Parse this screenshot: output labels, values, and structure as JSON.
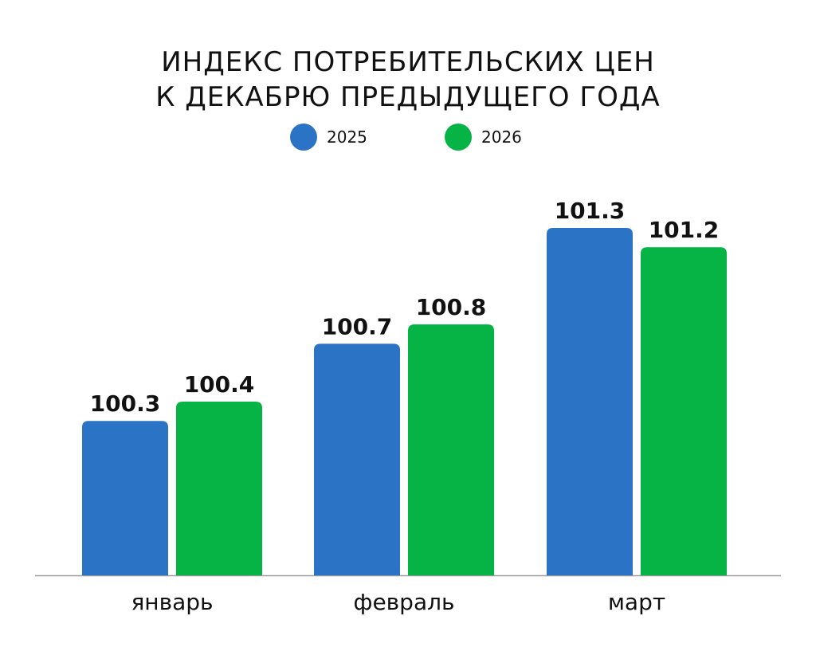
{
  "chart_data": {
    "type": "bar",
    "title_lines": [
      "ИНДЕКС ПОТРЕБИТЕЛЬСКИХ ЦЕН",
      "К ДЕКАБРЮ ПРЕДЫДУЩЕГО ГОДА"
    ],
    "categories": [
      "январь",
      "февраль",
      "март"
    ],
    "series": [
      {
        "name": "2025",
        "color": "#2b73c4",
        "values": [
          100.3,
          100.7,
          101.3
        ]
      },
      {
        "name": "2026",
        "color": "#05b445",
        "values": [
          100.4,
          100.8,
          101.2
        ]
      }
    ],
    "ylim": [
      99.5,
      101.3
    ],
    "grid": false,
    "legend_position": "top-center"
  }
}
